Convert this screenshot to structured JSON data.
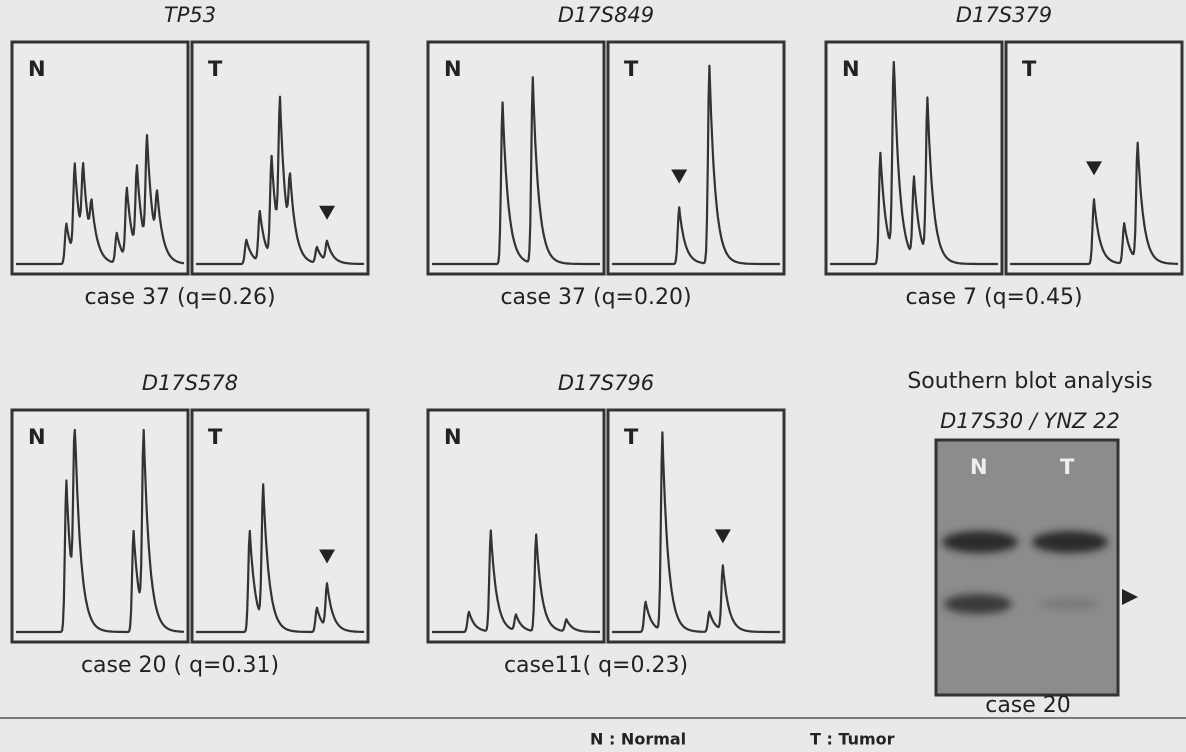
{
  "panels": [
    {
      "marker": "TP53",
      "normal_label": "N",
      "tumor_label": "T",
      "caption": "case 37 (q=0.26)"
    },
    {
      "marker": "D17S849",
      "normal_label": "N",
      "tumor_label": "T",
      "caption": "case 37 (q=0.20)"
    },
    {
      "marker": "D17S379",
      "normal_label": "N",
      "tumor_label": "T",
      "caption": "case 7 (q=0.45)"
    },
    {
      "marker": "D17S578",
      "normal_label": "N",
      "tumor_label": "T",
      "caption": "case 20 ( q=0.31)"
    },
    {
      "marker": "D17S796",
      "normal_label": "N",
      "tumor_label": "T",
      "caption": "case11( q=0.23)"
    }
  ],
  "southern_blot": {
    "title": "Southern blot analysis",
    "marker": "D17S30 / YNZ 22",
    "normal_label": "N",
    "tumor_label": "T",
    "caption": "case 20"
  },
  "legend": {
    "normal": "N : Normal",
    "tumor": "T : Tumor"
  }
}
